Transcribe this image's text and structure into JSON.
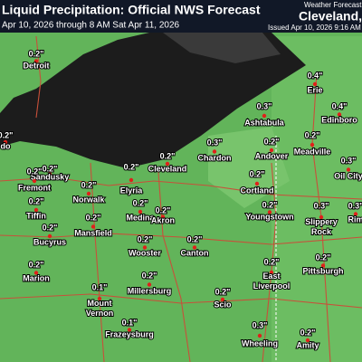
{
  "header": {
    "title": "Liquid Precipitation: Official NWS Forecast",
    "subtitle": "Apr 10, 2026 through 8 AM Sat Apr 11, 2026",
    "office": "Weather Forecast O",
    "location": "Cleveland, ",
    "issued": "Issued Apr 10, 2026 9:16 AM"
  },
  "places": [
    {
      "value": "0.2\"",
      "name": "Detroit"
    },
    {
      "value": "0.4\"",
      "name": "Erie"
    },
    {
      "value": "0.3\"",
      "name": "Ashtabula"
    },
    {
      "value": "0.4\"",
      "name": "Edinboro"
    },
    {
      "value": "0.3\"",
      "name": "Chardon"
    },
    {
      "value": "0.2\"",
      "name": "Andover"
    },
    {
      "value": "0.2\"",
      "name": "Meadville"
    },
    {
      "value": "0.2\"",
      "name": "Cleveland"
    },
    {
      "value": "0.2\"",
      "name": "Elyria"
    },
    {
      "value": "0.2\"",
      "name": "Sandusky"
    },
    {
      "value": "0.2\"",
      "name": "Fremont"
    },
    {
      "value": "0.2\"",
      "name": "Norwalk"
    },
    {
      "value": "0.2\"",
      "name": "Tiffin"
    },
    {
      "value": "0.2\"",
      "name": "Medina"
    },
    {
      "value": "0.2\"",
      "name": "Akron"
    },
    {
      "value": "0.2\"",
      "name": "Cortland"
    },
    {
      "value": "0.2\"",
      "name": "Youngstown"
    },
    {
      "value": "0.3\"",
      "name": "Oil City"
    },
    {
      "value": "0.3\"",
      "name": "Slippery Rock"
    },
    {
      "value": "0.2\"",
      "name": "Bucyrus"
    },
    {
      "value": "0.2\"",
      "name": "Mansfield"
    },
    {
      "value": "0.2\"",
      "name": "Wooster"
    },
    {
      "value": "0.2\"",
      "name": "Canton"
    },
    {
      "value": "0.2\"",
      "name": "Marion"
    },
    {
      "value": "0.2\"",
      "name": "East Liverpool"
    },
    {
      "value": "0.1\"",
      "name": "Mount Vernon"
    },
    {
      "value": "0.2\"",
      "name": "Millersburg"
    },
    {
      "value": "0.2\"",
      "name": "Scio"
    },
    {
      "value": "0.2\"",
      "name": "Pittsburgh"
    },
    {
      "value": "0.1\"",
      "name": "Frazeysburg"
    },
    {
      "value": "0.3\"",
      "name": "Wheeling"
    },
    {
      "value": "0.2\"",
      "name": "Amity"
    },
    {
      "value": "0.3\"",
      "name": "Rim"
    },
    {
      "value": "0.2\"",
      "name": "do"
    }
  ]
}
